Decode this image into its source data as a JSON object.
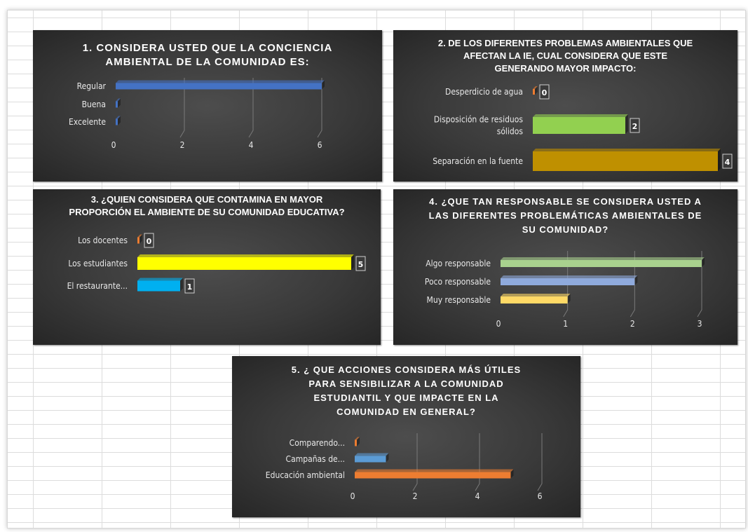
{
  "charts": [
    {
      "id": "c1",
      "type": "bar",
      "title": "1. CONSIDERA USTED QUE LA CONCIENCIA AMBIENTAL DE LA COMUNIDAD ES:",
      "categories": [
        "Regular",
        "Buena",
        "Excelente"
      ],
      "values": [
        6,
        0,
        0
      ],
      "colors": [
        "#4472c4",
        "#4472c4",
        "#4472c4"
      ],
      "xlim": [
        0,
        6
      ],
      "xticks": [
        "0",
        "2",
        "4",
        "6"
      ],
      "data_labels": false
    },
    {
      "id": "c2",
      "type": "bar",
      "title": "2. DE LOS DIFERENTES PROBLEMAS AMBIENTALES QUE AFECTAN LA IE, CUAL CONSIDERA QUE ESTE GENERANDO MAYOR IMPACTO:",
      "categories": [
        "Desperdicio de agua",
        "Disposición de residuos sólidos",
        "Separación en la fuente"
      ],
      "values": [
        0,
        2,
        4
      ],
      "colors": [
        "#ed7d31",
        "#92d050",
        "#bf9000"
      ],
      "xlim": [
        0,
        4
      ],
      "xticks": [],
      "data_labels": true
    },
    {
      "id": "c3",
      "type": "bar",
      "title": "3. ¿QUIEN CONSIDERA QUE CONTAMINA EN MAYOR PROPORCIÓN EL AMBIENTE DE SU COMUNIDAD EDUCATIVA?",
      "categories": [
        "Los docentes",
        "Los estudiantes",
        "El restaurante..."
      ],
      "values": [
        0,
        5,
        1
      ],
      "colors": [
        "#ed7d31",
        "#ffff00",
        "#00b0f0"
      ],
      "xlim": [
        0,
        5
      ],
      "xticks": [],
      "data_labels": true
    },
    {
      "id": "c4",
      "type": "bar",
      "title": "4. ¿QUE TAN RESPONSABLE SE CONSIDERA USTED A LAS DIFERENTES PROBLEMÁTICAS AMBIENTALES DE SU COMUNIDAD?",
      "categories": [
        "Algo responsable",
        "Poco responsable",
        "Muy responsable"
      ],
      "values": [
        3,
        2,
        1
      ],
      "colors": [
        "#a9d18e",
        "#8faadc",
        "#ffd966"
      ],
      "xlim": [
        0,
        3
      ],
      "xticks": [
        "0",
        "1",
        "2",
        "3"
      ],
      "data_labels": false
    },
    {
      "id": "c5",
      "type": "bar",
      "title": "5. ¿ QUE ACCIONES CONSIDERA MÁS ÚTILES PARA SENSIBILIZAR A LA COMUNIDAD ESTUDIANTIL Y QUE IMPACTE EN LA COMUNIDAD EN GENERAL?",
      "categories": [
        "Comparendo...",
        "Campañas de...",
        "Educación ambiental"
      ],
      "values": [
        0,
        1,
        5
      ],
      "colors": [
        "#ed7d31",
        "#5b9bd5",
        "#ed7d31"
      ],
      "xlim": [
        0,
        6
      ],
      "xticks": [
        "0",
        "2",
        "4",
        "6"
      ],
      "data_labels": false
    }
  ]
}
